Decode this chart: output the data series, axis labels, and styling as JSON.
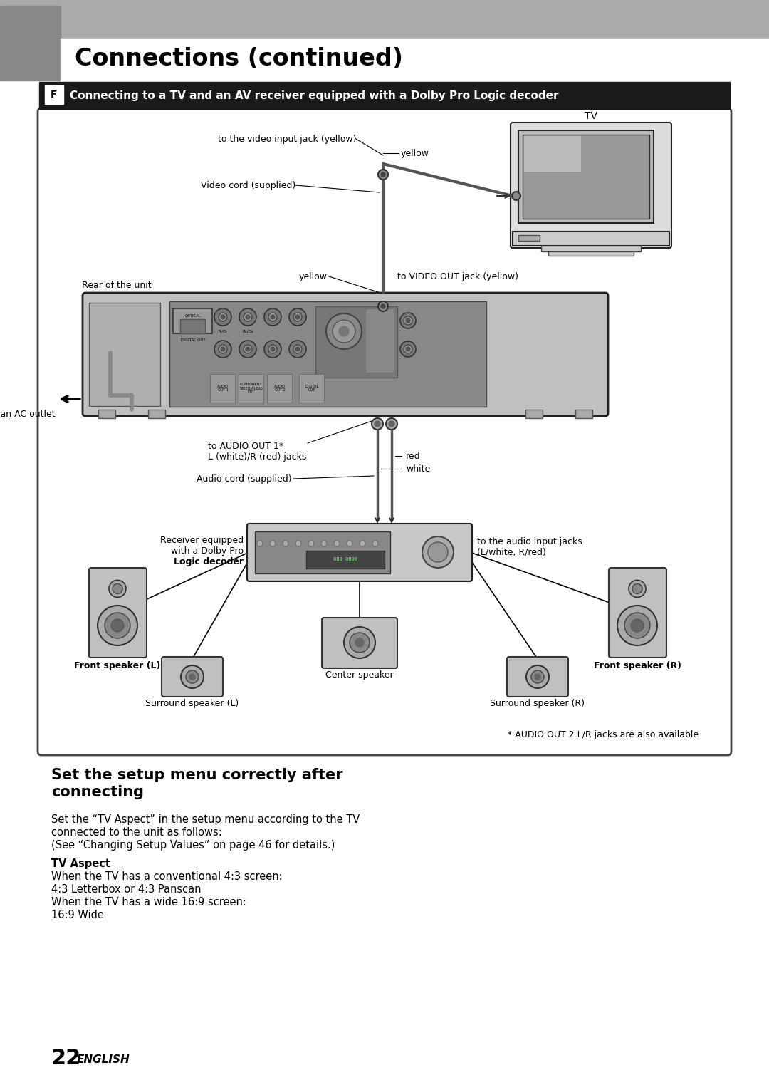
{
  "page_bg": "#ffffff",
  "header_grey": "#999999",
  "header_dark": "#777777",
  "header_text": "Connections (continued)",
  "section_bar_color": "#1a1a1a",
  "section_icon": "F",
  "section_title": "Connecting to a TV and an AV receiver equipped with a Dolby Pro Logic decoder",
  "diagram_border_color": "#444444",
  "diagram_bg": "#ffffff",
  "footer_page": "22",
  "footer_text": "ENGLISH",
  "setup_heading_line1": "Set the setup menu correctly after",
  "setup_heading_line2": "connecting",
  "setup_body1_line1": "Set the “TV Aspect” in the setup menu according to the TV",
  "setup_body1_line2": "connected to the unit as follows:",
  "setup_body1_line3": "(See “Changing Setup Values” on page 46 for details.)",
  "setup_subheading": "TV Aspect",
  "setup_body2_line1": "When the TV has a conventional 4:3 screen:",
  "setup_body2_line2": "4:3 Letterbox or 4:3 Panscan",
  "setup_body2_line3": "When the TV has a wide 16:9 screen:",
  "setup_body2_line4": "16:9 Wide",
  "note_text": "* AUDIO OUT 2 L/R jacks are also available.",
  "labels": {
    "tv": "TV",
    "yellow_top": "yellow",
    "to_video_input": "to the video input jack (yellow)",
    "video_cord": "Video cord (supplied)",
    "yellow_mid": "yellow",
    "to_video_out": "to VIDEO OUT jack (yellow)",
    "rear_of_unit": "Rear of the unit",
    "to_audio_out": "to AUDIO OUT 1*\nL (white)/R (red) jacks",
    "to_ac_outlet": "to an AC outlet",
    "red": "red",
    "white": "white",
    "audio_cord": "Audio cord (supplied)",
    "receiver_line1": "Receiver equipped",
    "receiver_line2": "with a Dolby Pro",
    "receiver_line3": "Logic decoder",
    "to_audio_input_line1": "to the audio input jacks",
    "to_audio_input_line2": "(L/white, R/red)",
    "front_L": "Front speaker (L)",
    "front_R": "Front speaker (R)",
    "surround_L": "Surround speaker (L)",
    "center": "Center speaker",
    "surround_R": "Surround speaker (R)"
  }
}
